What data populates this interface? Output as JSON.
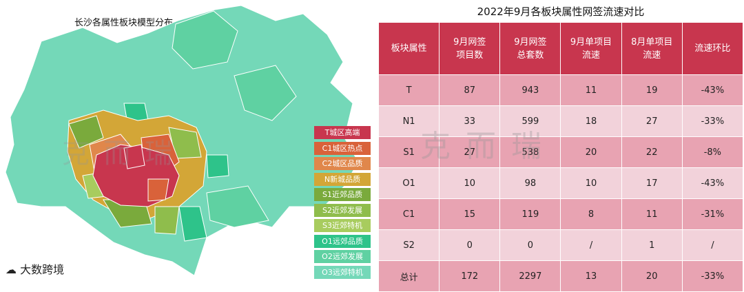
{
  "map": {
    "title": "长沙各属性板块模型分布",
    "legend": [
      {
        "label": "T城区高端",
        "color": "#c8364e"
      },
      {
        "label": "C1城区热点",
        "color": "#d9623a"
      },
      {
        "label": "C2城区品质",
        "color": "#e0874b"
      },
      {
        "label": "N新城品质",
        "color": "#d3a637"
      },
      {
        "label": "S1近郊品质",
        "color": "#7aaa3c"
      },
      {
        "label": "S2近郊发展",
        "color": "#8fbd4c"
      },
      {
        "label": "S3近郊特机",
        "color": "#a8cc5e"
      },
      {
        "label": "O1远郊品质",
        "color": "#2ec38a"
      },
      {
        "label": "O2远郊发展",
        "color": "#5fd1a2"
      },
      {
        "label": "O3远郊特机",
        "color": "#74d8b8"
      }
    ]
  },
  "chart_data": {
    "type": "table",
    "title": "2022年9月各板块属性网签流速对比",
    "header": [
      "板块属性",
      "9月网签\n项目数",
      "9月网签\n总套数",
      "9月单项目\n流速",
      "8月单项目\n流速",
      "流速环比"
    ],
    "rows": [
      [
        "T",
        "87",
        "943",
        "11",
        "19",
        "-43%"
      ],
      [
        "N1",
        "33",
        "599",
        "18",
        "27",
        "-33%"
      ],
      [
        "S1",
        "27",
        "538",
        "20",
        "22",
        "-8%"
      ],
      [
        "O1",
        "10",
        "98",
        "10",
        "17",
        "-43%"
      ],
      [
        "C1",
        "15",
        "119",
        "8",
        "11",
        "-31%"
      ],
      [
        "S2",
        "0",
        "0",
        "/",
        "1",
        "/"
      ],
      [
        "总计",
        "172",
        "2297",
        "13",
        "20",
        "-33%"
      ]
    ]
  },
  "watermark": {
    "logo_text": "大数跨境",
    "brand": "克而瑞"
  }
}
